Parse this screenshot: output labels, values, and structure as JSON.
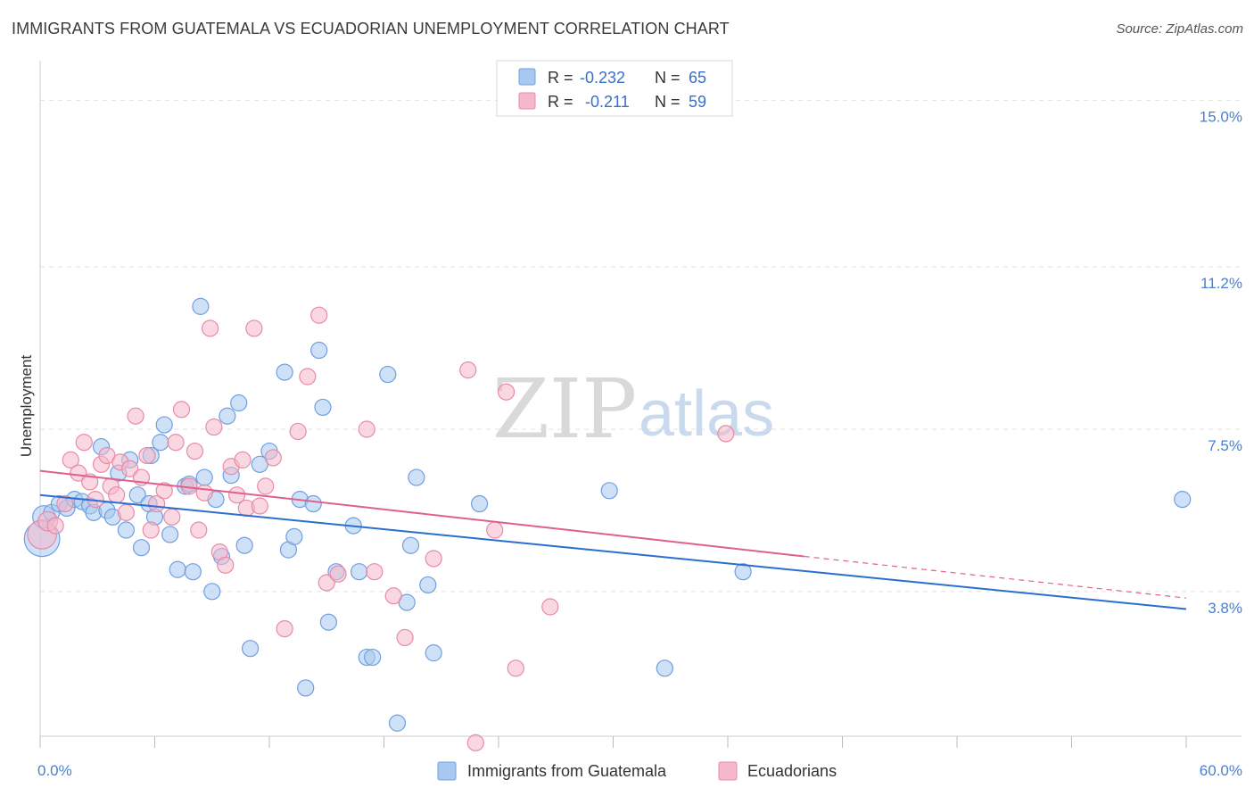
{
  "header": {
    "title": "IMMIGRANTS FROM GUATEMALA VS ECUADORIAN UNEMPLOYMENT CORRELATION CHART",
    "source": "Source: ZipAtlas.com"
  },
  "watermark": {
    "zip": "ZIP",
    "atlas": "atlas"
  },
  "colors": {
    "blue_fill": "#a8c8f0",
    "blue_stroke": "#6f9fe0",
    "blue_line": "#2a6fd0",
    "pink_fill": "#f5b8cb",
    "pink_stroke": "#e88aa8",
    "pink_line": "#e0608a",
    "tick_label": "#4a7fcf",
    "grid": "#e0e0e0"
  },
  "legend": {
    "rows": [
      {
        "r_label": "R = ",
        "r_value": "-0.232",
        "n_label": "N = ",
        "n_value": "65"
      },
      {
        "r_label": "R = ",
        "r_value": "-0.211",
        "n_label": "N = ",
        "n_value": "59"
      }
    ]
  },
  "chart_data": {
    "type": "scatter",
    "title": "IMMIGRANTS FROM GUATEMALA VS ECUADORIAN UNEMPLOYMENT CORRELATION CHART",
    "xlabel": "",
    "ylabel": "Unemployment",
    "xlim": [
      0,
      60
    ],
    "ylim": [
      0.5,
      15.7
    ],
    "x_tick_labels": [
      "0.0%",
      "60.0%"
    ],
    "y_ticks": [
      3.8,
      7.5,
      11.2,
      15.0
    ],
    "y_tick_labels": [
      "3.8%",
      "7.5%",
      "11.2%",
      "15.0%"
    ],
    "grid": "horizontal dashed",
    "legend_position": "top-center",
    "series": [
      {
        "name": "Immigrants from Guatemala",
        "color": "blue",
        "trend": {
          "x": [
            0,
            60
          ],
          "y": [
            6.0,
            3.4
          ]
        },
        "points": [
          [
            0.1,
            5.0,
            2.2
          ],
          [
            0.2,
            5.5,
            1.4
          ],
          [
            0.6,
            5.6,
            1
          ],
          [
            1.0,
            5.8,
            1
          ],
          [
            1.4,
            5.7,
            1
          ],
          [
            1.8,
            5.9,
            1
          ],
          [
            2.2,
            5.85,
            1
          ],
          [
            2.6,
            5.75,
            1
          ],
          [
            2.8,
            5.6,
            1
          ],
          [
            3.2,
            7.1,
            1
          ],
          [
            3.5,
            5.65,
            1
          ],
          [
            3.8,
            5.5,
            1
          ],
          [
            4.1,
            6.5,
            1
          ],
          [
            4.5,
            5.2,
            1
          ],
          [
            4.7,
            6.8,
            1
          ],
          [
            5.1,
            6.0,
            1
          ],
          [
            5.3,
            4.8,
            1
          ],
          [
            5.7,
            5.8,
            1
          ],
          [
            5.8,
            6.9,
            1
          ],
          [
            6.0,
            5.5,
            1
          ],
          [
            6.3,
            7.2,
            1
          ],
          [
            6.5,
            7.6,
            1
          ],
          [
            6.8,
            5.1,
            1
          ],
          [
            7.2,
            4.3,
            1
          ],
          [
            7.6,
            6.2,
            1
          ],
          [
            7.8,
            6.25,
            1
          ],
          [
            8.0,
            4.25,
            1
          ],
          [
            8.4,
            10.3,
            1
          ],
          [
            8.6,
            6.4,
            1
          ],
          [
            9.0,
            3.8,
            1
          ],
          [
            9.2,
            5.9,
            1
          ],
          [
            9.5,
            4.6,
            1
          ],
          [
            9.8,
            7.8,
            1
          ],
          [
            10.0,
            6.45,
            1
          ],
          [
            10.4,
            8.1,
            1
          ],
          [
            10.7,
            4.85,
            1
          ],
          [
            11.0,
            2.5,
            1
          ],
          [
            11.5,
            6.7,
            1
          ],
          [
            12.0,
            7.0,
            1
          ],
          [
            12.8,
            8.8,
            1
          ],
          [
            13.0,
            4.75,
            1
          ],
          [
            13.3,
            5.05,
            1
          ],
          [
            13.6,
            5.9,
            1
          ],
          [
            13.9,
            1.6,
            1
          ],
          [
            14.3,
            5.8,
            1
          ],
          [
            14.6,
            9.3,
            1
          ],
          [
            14.8,
            8.0,
            1
          ],
          [
            15.1,
            3.1,
            1
          ],
          [
            15.5,
            4.25,
            1
          ],
          [
            16.4,
            5.3,
            1
          ],
          [
            16.7,
            4.25,
            1
          ],
          [
            17.1,
            2.3,
            1
          ],
          [
            17.4,
            2.3,
            1
          ],
          [
            18.2,
            8.75,
            1
          ],
          [
            18.7,
            0.8,
            1
          ],
          [
            19.2,
            3.55,
            1
          ],
          [
            19.4,
            4.85,
            1
          ],
          [
            19.7,
            6.4,
            1
          ],
          [
            20.3,
            3.95,
            1
          ],
          [
            20.6,
            2.4,
            1
          ],
          [
            23.0,
            5.8,
            1
          ],
          [
            29.8,
            6.1,
            1
          ],
          [
            32.7,
            2.05,
            1
          ],
          [
            36.8,
            4.25,
            1
          ],
          [
            59.8,
            5.9,
            1
          ]
        ]
      },
      {
        "name": "Ecuadorians",
        "color": "pink",
        "trend": {
          "x": [
            0,
            40
          ],
          "y": [
            6.55,
            4.6
          ]
        },
        "trend_dashed": {
          "x": [
            40,
            60
          ],
          "y": [
            4.6,
            3.65
          ]
        },
        "points": [
          [
            0.1,
            5.1,
            1.8
          ],
          [
            0.4,
            5.4,
            1.2
          ],
          [
            0.8,
            5.3,
            1
          ],
          [
            1.3,
            5.8,
            1
          ],
          [
            1.6,
            6.8,
            1
          ],
          [
            2.0,
            6.5,
            1
          ],
          [
            2.3,
            7.2,
            1
          ],
          [
            2.6,
            6.3,
            1
          ],
          [
            2.9,
            5.9,
            1
          ],
          [
            3.2,
            6.7,
            1
          ],
          [
            3.5,
            6.9,
            1
          ],
          [
            3.7,
            6.2,
            1
          ],
          [
            4.0,
            6.0,
            1
          ],
          [
            4.2,
            6.75,
            1
          ],
          [
            4.5,
            5.6,
            1
          ],
          [
            4.7,
            6.6,
            1
          ],
          [
            5.0,
            7.8,
            1
          ],
          [
            5.3,
            6.4,
            1
          ],
          [
            5.6,
            6.9,
            1
          ],
          [
            5.8,
            5.2,
            1
          ],
          [
            6.1,
            5.8,
            1
          ],
          [
            6.5,
            6.1,
            1
          ],
          [
            6.9,
            5.5,
            1
          ],
          [
            7.1,
            7.2,
            1
          ],
          [
            7.4,
            7.95,
            1
          ],
          [
            7.8,
            6.2,
            1
          ],
          [
            8.1,
            7.0,
            1
          ],
          [
            8.3,
            5.2,
            1
          ],
          [
            8.6,
            6.05,
            1
          ],
          [
            8.9,
            9.8,
            1
          ],
          [
            9.1,
            7.55,
            1
          ],
          [
            9.4,
            4.7,
            1
          ],
          [
            9.7,
            4.4,
            1
          ],
          [
            10.0,
            6.65,
            1
          ],
          [
            10.3,
            6.0,
            1
          ],
          [
            10.6,
            6.8,
            1
          ],
          [
            10.8,
            5.7,
            1
          ],
          [
            11.2,
            9.8,
            1
          ],
          [
            11.5,
            5.75,
            1
          ],
          [
            11.8,
            6.2,
            1
          ],
          [
            12.2,
            6.85,
            1
          ],
          [
            12.8,
            2.95,
            1
          ],
          [
            13.5,
            7.45,
            1
          ],
          [
            14.0,
            8.7,
            1
          ],
          [
            14.6,
            10.1,
            1
          ],
          [
            15.0,
            4.0,
            1
          ],
          [
            15.6,
            4.2,
            1
          ],
          [
            17.1,
            7.5,
            1
          ],
          [
            17.5,
            4.25,
            1
          ],
          [
            18.5,
            3.7,
            1
          ],
          [
            19.1,
            2.75,
            1
          ],
          [
            20.6,
            4.55,
            1
          ],
          [
            22.4,
            8.85,
            1
          ],
          [
            22.8,
            0.35,
            1
          ],
          [
            23.8,
            5.2,
            1
          ],
          [
            24.4,
            8.35,
            1
          ],
          [
            24.9,
            2.05,
            1
          ],
          [
            26.7,
            3.45,
            1
          ],
          [
            35.9,
            7.4,
            1
          ]
        ]
      }
    ]
  }
}
